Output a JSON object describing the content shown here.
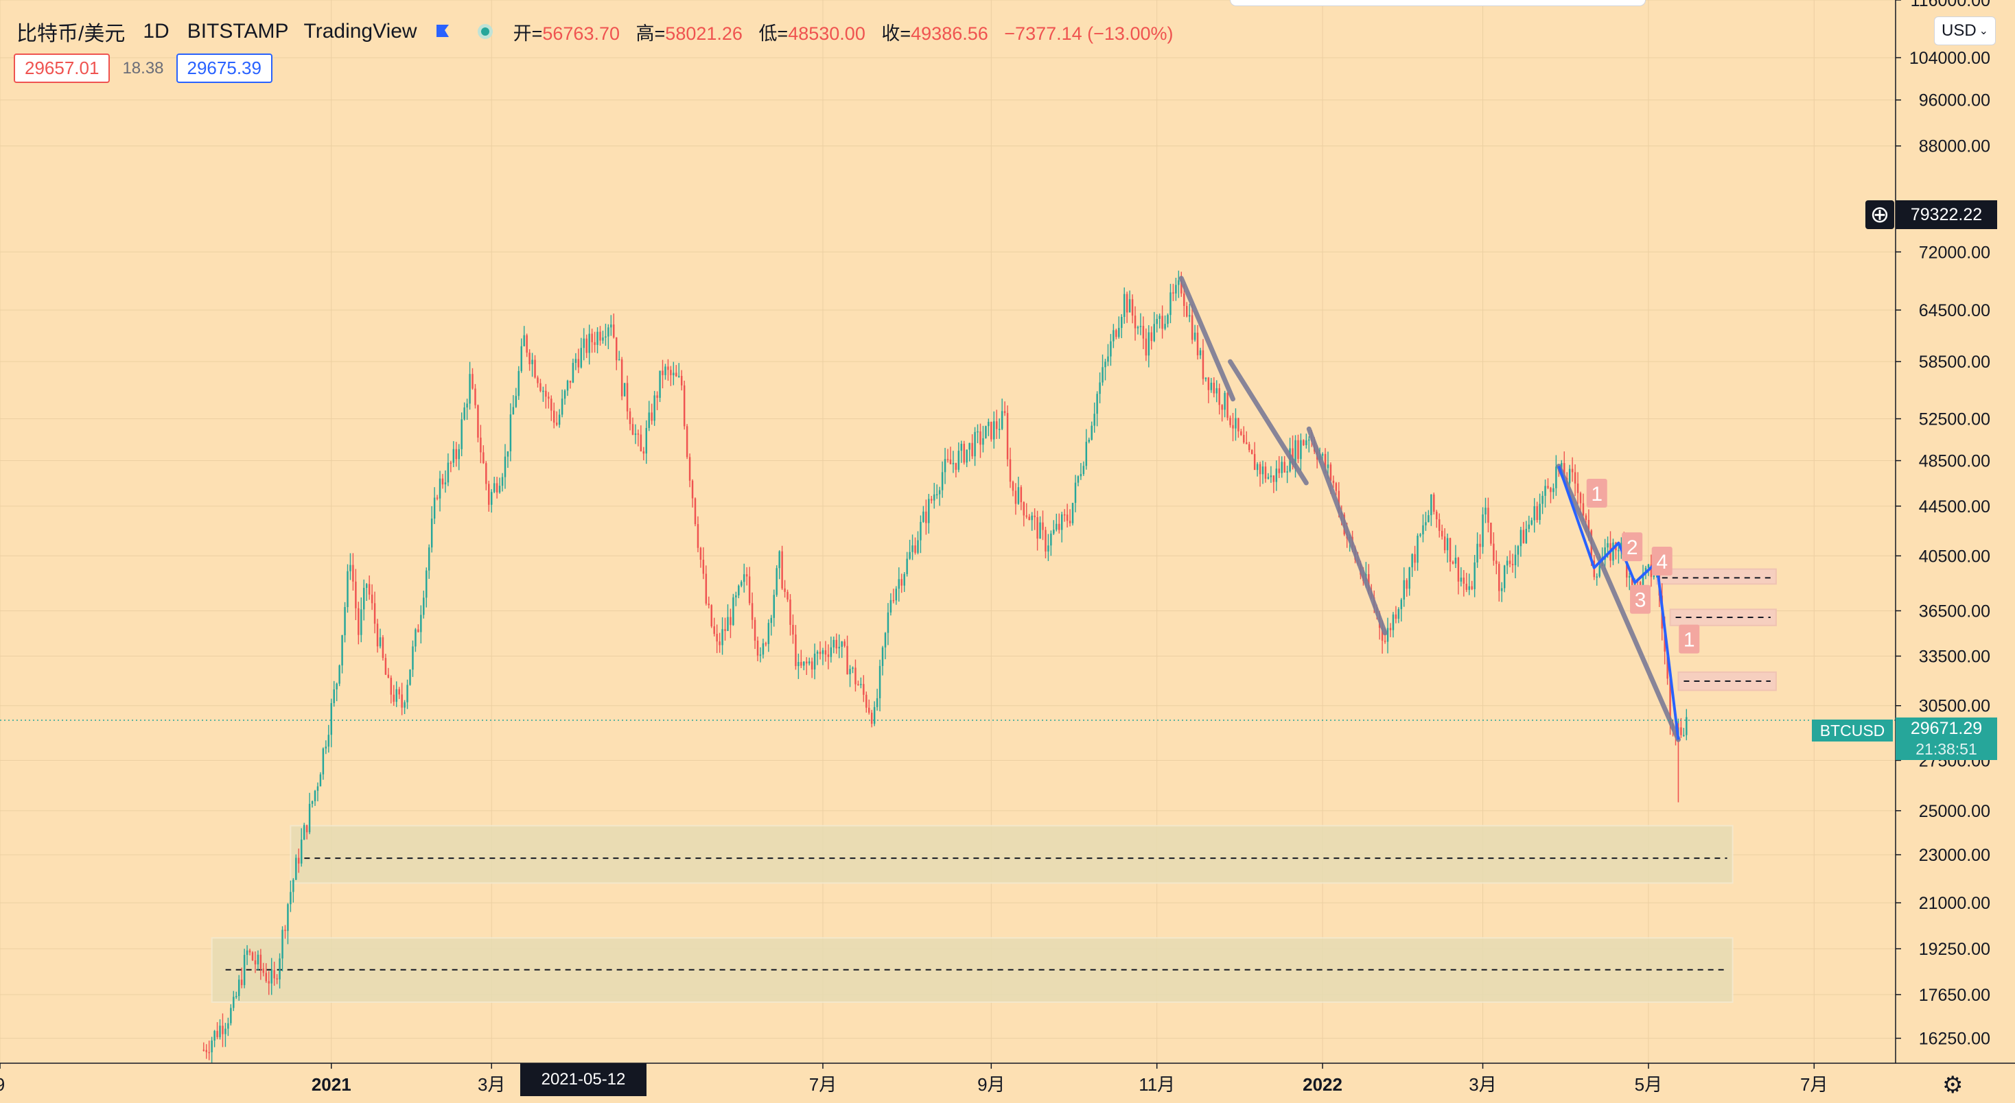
{
  "header": {
    "symbol": "比特币/美元",
    "timeframe": "1D",
    "exchange": "BITSTAMP",
    "platform": "TradingView",
    "ohlc": {
      "open_label": "开=",
      "open": "56763.70",
      "high_label": "高=",
      "high": "58021.26",
      "low_label": "低=",
      "low": "48530.00",
      "close_label": "收=",
      "close": "49386.56",
      "change": "−7377.14 (−13.00%)"
    },
    "bid": "29657.01",
    "spread": "18.38",
    "ask": "29675.39"
  },
  "currency_button": "USD",
  "crosshair": {
    "date_label": "2021-05-12",
    "price_label": "79322.22",
    "add_icon": "plus-circle-icon"
  },
  "current_price": {
    "ticker": "BTCUSD",
    "price": "29671.29",
    "countdown": "21:38:51",
    "color": "#26a69a"
  },
  "colors": {
    "background": "#fde0b3",
    "up": "#26a69a",
    "down": "#ef5350",
    "trend": "#7b7b96",
    "wave": "#2962ff",
    "zone": "#e7dcb3",
    "zone_small": "#f6cfc0"
  },
  "chart_data": {
    "type": "candlestick",
    "y_scale": "log",
    "ylim": [
      15500,
      116000
    ],
    "price_ticks": [
      116000,
      104000,
      96000,
      88000,
      72000,
      64500,
      58500,
      52500,
      48500,
      44500,
      40500,
      36500,
      33500,
      30500,
      27500,
      25000,
      23000,
      21000,
      19250,
      17650,
      16250
    ],
    "price_tick_labels": [
      "116000.00",
      "104000.00",
      "96000.00",
      "88000.00",
      "72000.00",
      "64500.00",
      "58500.00",
      "52500.00",
      "48500.00",
      "44500.00",
      "40500.00",
      "36500.00",
      "33500.00",
      "30500.00",
      "27500.00",
      "25000.00",
      "23000.00",
      "21000.00",
      "19250.00",
      "17650.00",
      "16250.00"
    ],
    "date_range": [
      "2020-09-01",
      "2022-07-31"
    ],
    "time_ticks": [
      {
        "date": "2020-09-01",
        "label": "9",
        "bold": false
      },
      {
        "date": "2021-01-01",
        "label": "2021",
        "bold": true
      },
      {
        "date": "2021-03-01",
        "label": "3月",
        "bold": false
      },
      {
        "date": "2021-07-01",
        "label": "7月",
        "bold": false
      },
      {
        "date": "2021-09-01",
        "label": "9月",
        "bold": false
      },
      {
        "date": "2021-11-01",
        "label": "11月",
        "bold": false
      },
      {
        "date": "2022-01-01",
        "label": "2022",
        "bold": true
      },
      {
        "date": "2022-03-01",
        "label": "3月",
        "bold": false
      },
      {
        "date": "2022-05-01",
        "label": "5月",
        "bold": false
      },
      {
        "date": "2022-07-01",
        "label": "7月",
        "bold": false
      }
    ],
    "price_path": [
      [
        "2020-11-15",
        15900
      ],
      [
        "2020-11-26",
        17200
      ],
      [
        "2020-12-01",
        19100
      ],
      [
        "2020-12-11",
        18000
      ],
      [
        "2020-12-16",
        21000
      ],
      [
        "2020-12-21",
        23500
      ],
      [
        "2020-12-27",
        26500
      ],
      [
        "2021-01-03",
        32000
      ],
      [
        "2021-01-08",
        40500
      ],
      [
        "2021-01-11",
        35000
      ],
      [
        "2021-01-14",
        38500
      ],
      [
        "2021-01-22",
        31500
      ],
      [
        "2021-01-27",
        30500
      ],
      [
        "2021-02-02",
        35500
      ],
      [
        "2021-02-09",
        46000
      ],
      [
        "2021-02-16",
        49000
      ],
      [
        "2021-02-21",
        56500
      ],
      [
        "2021-02-28",
        45000
      ],
      [
        "2021-03-06",
        48500
      ],
      [
        "2021-03-13",
        61000
      ],
      [
        "2021-03-25",
        52000
      ],
      [
        "2021-04-01",
        58800
      ],
      [
        "2021-04-14",
        63500
      ],
      [
        "2021-04-18",
        56000
      ],
      [
        "2021-04-25",
        49000
      ],
      [
        "2021-05-03",
        57500
      ],
      [
        "2021-05-10",
        56000
      ],
      [
        "2021-05-12",
        49400
      ],
      [
        "2021-05-19",
        37000
      ],
      [
        "2021-05-23",
        34000
      ],
      [
        "2021-06-03",
        39000
      ],
      [
        "2021-06-08",
        33000
      ],
      [
        "2021-06-15",
        40000
      ],
      [
        "2021-06-22",
        32500
      ],
      [
        "2021-07-06",
        34500
      ],
      [
        "2021-07-20",
        29800
      ],
      [
        "2021-07-26",
        37500
      ],
      [
        "2021-08-01",
        40000
      ],
      [
        "2021-08-14",
        47500
      ],
      [
        "2021-08-23",
        49500
      ],
      [
        "2021-09-06",
        52500
      ],
      [
        "2021-09-08",
        46500
      ],
      [
        "2021-09-21",
        41500
      ],
      [
        "2021-09-30",
        43800
      ],
      [
        "2021-10-10",
        55000
      ],
      [
        "2021-10-20",
        66000
      ],
      [
        "2021-10-28",
        60500
      ],
      [
        "2021-11-10",
        67500
      ],
      [
        "2021-11-18",
        57500
      ],
      [
        "2021-11-26",
        54000
      ],
      [
        "2021-12-04",
        49000
      ],
      [
        "2021-12-13",
        46800
      ],
      [
        "2021-12-27",
        51000
      ],
      [
        "2022-01-05",
        46500
      ],
      [
        "2022-01-10",
        42000
      ],
      [
        "2022-01-21",
        36300
      ],
      [
        "2022-01-24",
        34500
      ],
      [
        "2022-02-10",
        44500
      ],
      [
        "2022-02-24",
        37500
      ],
      [
        "2022-03-02",
        44300
      ],
      [
        "2022-03-07",
        38500
      ],
      [
        "2022-03-28",
        47500
      ],
      [
        "2022-04-05",
        46400
      ],
      [
        "2022-04-11",
        39500
      ],
      [
        "2022-04-20",
        41500
      ],
      [
        "2022-04-26",
        38100
      ],
      [
        "2022-05-04",
        39700
      ],
      [
        "2022-05-09",
        30100
      ],
      [
        "2022-05-12",
        29000
      ],
      [
        "2022-05-15",
        29700
      ]
    ],
    "annotations": {
      "trend_lines": [
        {
          "from": [
            "2021-11-10",
            68500
          ],
          "to": [
            "2021-11-29",
            54500
          ]
        },
        {
          "from": [
            "2021-11-28",
            58500
          ],
          "to": [
            "2021-12-26",
            46500
          ]
        },
        {
          "from": [
            "2021-12-27",
            51500
          ],
          "to": [
            "2022-01-24",
            35000
          ]
        },
        {
          "from": [
            "2022-03-29",
            48000
          ],
          "to": [
            "2022-05-12",
            28600
          ]
        }
      ],
      "wave_lines": [
        {
          "points": [
            [
              "2022-03-29",
              48000
            ],
            [
              "2022-04-11",
              39600
            ],
            [
              "2022-04-20",
              41500
            ],
            [
              "2022-04-26",
              38500
            ],
            [
              "2022-05-04",
              40000
            ],
            [
              "2022-05-12",
              28600
            ]
          ]
        }
      ],
      "wave_labels": [
        {
          "label": "1",
          "date": "2022-04-12",
          "price": 45600
        },
        {
          "label": "2",
          "date": "2022-04-25",
          "price": 41200
        },
        {
          "label": "3",
          "date": "2022-04-28",
          "price": 37300
        },
        {
          "label": "4",
          "date": "2022-05-06",
          "price": 40100
        },
        {
          "label": "1",
          "date": "2022-05-16",
          "price": 34600
        }
      ],
      "zones": [
        {
          "from": "2020-12-17",
          "to": "2022-06-01",
          "top": 24300,
          "bottom": 21800,
          "line": 22850,
          "style": "large"
        },
        {
          "from": "2020-11-18",
          "to": "2022-06-01",
          "top": 19650,
          "bottom": 17400,
          "line": 18500,
          "style": "large"
        },
        {
          "from": "2022-05-04",
          "to": "2022-06-17",
          "top": 39500,
          "bottom": 38400,
          "line": 38850,
          "style": "small"
        },
        {
          "from": "2022-05-09",
          "to": "2022-06-17",
          "top": 36600,
          "bottom": 35500,
          "line": 36050,
          "style": "small"
        },
        {
          "from": "2022-05-12",
          "to": "2022-06-17",
          "top": 32500,
          "bottom": 31400,
          "line": 31950,
          "style": "small"
        }
      ]
    }
  }
}
